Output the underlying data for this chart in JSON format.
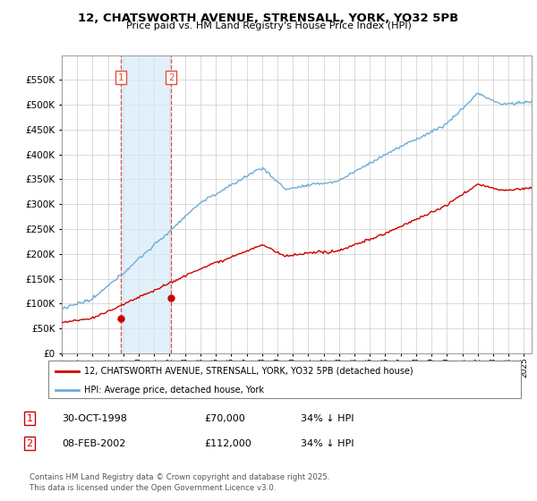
{
  "title": "12, CHATSWORTH AVENUE, STRENSALL, YORK, YO32 5PB",
  "subtitle": "Price paid vs. HM Land Registry's House Price Index (HPI)",
  "ylim": [
    0,
    600000
  ],
  "xlim_start": 1995.0,
  "xlim_end": 2025.5,
  "sale1_date": 1998.83,
  "sale1_price": 70000,
  "sale2_date": 2002.1,
  "sale2_price": 112000,
  "shade_color": "#d6eaf8",
  "vline_color": "#e74c3c",
  "dot_color": "#cc0000",
  "red_line_color": "#cc0000",
  "blue_line_color": "#6baed6",
  "legend_red_label": "12, CHATSWORTH AVENUE, STRENSALL, YORK, YO32 5PB (detached house)",
  "legend_blue_label": "HPI: Average price, detached house, York",
  "table_row1": [
    "1",
    "30-OCT-1998",
    "£70,000",
    "34% ↓ HPI"
  ],
  "table_row2": [
    "2",
    "08-FEB-2002",
    "£112,000",
    "34% ↓ HPI"
  ],
  "footer": "Contains HM Land Registry data © Crown copyright and database right 2025.\nThis data is licensed under the Open Government Licence v3.0.",
  "background_color": "#ffffff",
  "grid_color": "#cccccc"
}
